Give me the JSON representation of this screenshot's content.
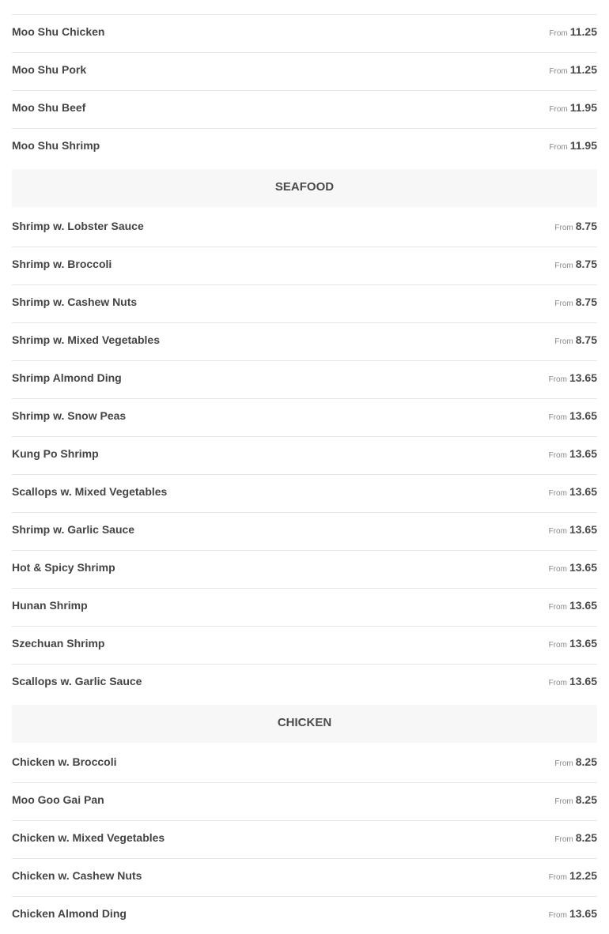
{
  "from_label": "From",
  "sections": [
    {
      "title": "",
      "items": [
        {
          "name": "Moo Shu Chicken",
          "price": "11.25"
        },
        {
          "name": "Moo Shu Pork",
          "price": "11.25"
        },
        {
          "name": "Moo Shu Beef",
          "price": "11.95"
        },
        {
          "name": "Moo Shu Shrimp",
          "price": "11.95"
        }
      ]
    },
    {
      "title": "SEAFOOD",
      "items": [
        {
          "name": "Shrimp w. Lobster Sauce",
          "price": "8.75"
        },
        {
          "name": "Shrimp w. Broccoli",
          "price": "8.75"
        },
        {
          "name": "Shrimp w. Cashew Nuts",
          "price": "8.75"
        },
        {
          "name": "Shrimp w. Mixed Vegetables",
          "price": "8.75"
        },
        {
          "name": "Shrimp Almond Ding",
          "price": "13.65"
        },
        {
          "name": "Shrimp w. Snow Peas",
          "price": "13.65"
        },
        {
          "name": "Kung Po Shrimp",
          "price": "13.65"
        },
        {
          "name": "Scallops w. Mixed Vegetables",
          "price": "13.65"
        },
        {
          "name": "Shrimp w. Garlic Sauce",
          "price": "13.65"
        },
        {
          "name": "Hot & Spicy Shrimp",
          "price": "13.65"
        },
        {
          "name": "Hunan Shrimp",
          "price": "13.65"
        },
        {
          "name": "Szechuan Shrimp",
          "price": "13.65"
        },
        {
          "name": "Scallops w. Garlic Sauce",
          "price": "13.65"
        }
      ]
    },
    {
      "title": "CHICKEN",
      "items": [
        {
          "name": "Chicken w. Broccoli",
          "price": "8.25"
        },
        {
          "name": "Moo Goo Gai Pan",
          "price": "8.25"
        },
        {
          "name": "Chicken w. Mixed Vegetables",
          "price": "8.25"
        },
        {
          "name": "Chicken w. Cashew Nuts",
          "price": "12.25"
        },
        {
          "name": "Chicken Almond Ding",
          "price": "13.65"
        }
      ]
    }
  ]
}
